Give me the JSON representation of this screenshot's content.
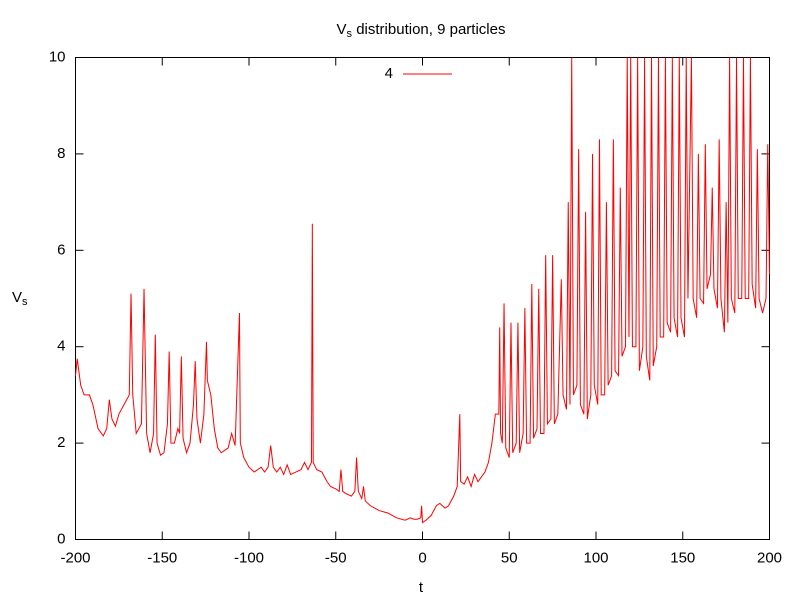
{
  "chart_data": {
    "type": "line",
    "title": {
      "symbol": "V",
      "subscript": "s",
      "text": " distribution, 9 particles"
    },
    "x_label": "t",
    "y_label": {
      "symbol": "V",
      "subscript": "s"
    },
    "xlim": [
      -200,
      200
    ],
    "xticks": [
      -200,
      -150,
      -100,
      -50,
      0,
      50,
      100,
      150,
      200
    ],
    "ylim": [
      0,
      10
    ],
    "yticks": [
      0,
      2,
      4,
      6,
      8,
      10
    ],
    "grid": false,
    "legend": "top-center",
    "x": [
      -200,
      -199,
      -197,
      -195,
      -192,
      -190,
      -187,
      -184,
      -182,
      -180.5,
      -179,
      -177,
      -175,
      -172,
      -169,
      -168,
      -167,
      -165,
      -162,
      -160.5,
      -159,
      -157,
      -155,
      -154,
      -153,
      -151,
      -149,
      -147,
      -146,
      -145,
      -143,
      -141,
      -140,
      -139,
      -138,
      -136,
      -134,
      -132,
      -131,
      -130,
      -128,
      -126,
      -124.5,
      -124,
      -122,
      -120,
      -118,
      -116,
      -114,
      -112,
      -110,
      -108,
      -105.5,
      -105,
      -103,
      -100,
      -97,
      -95,
      -93,
      -91,
      -89,
      -87.5,
      -86,
      -84,
      -82,
      -80,
      -78,
      -76,
      -73,
      -70,
      -68,
      -66,
      -64,
      -63.5,
      -63,
      -61,
      -58,
      -55,
      -53,
      -50,
      -48,
      -47,
      -46,
      -44,
      -41,
      -39,
      -38,
      -37,
      -35,
      -34,
      -33,
      -30,
      -25,
      -20,
      -15,
      -10,
      -7,
      -5,
      -3,
      -1,
      -0.5,
      0,
      2,
      5,
      8,
      10,
      13,
      15,
      18,
      20,
      21.5,
      22,
      24,
      26,
      28,
      30,
      32,
      34,
      36,
      38,
      40,
      42,
      44,
      44.5,
      45,
      46,
      47,
      48,
      50,
      51,
      52,
      54,
      55,
      56,
      58,
      59,
      60,
      62,
      63,
      64,
      66,
      67,
      68,
      70,
      71,
      72,
      74,
      75,
      76,
      78,
      80,
      81,
      83,
      84,
      85,
      86,
      87,
      89,
      90,
      91,
      93,
      94,
      95,
      97,
      98,
      99,
      101,
      102,
      103,
      105,
      106,
      107,
      109,
      110,
      111,
      113,
      114,
      115,
      117,
      118,
      119,
      120,
      121,
      123,
      124,
      125,
      127,
      128,
      129,
      131,
      132,
      133,
      135,
      136,
      137,
      139,
      140,
      141,
      143,
      144,
      145,
      147,
      148,
      149,
      151,
      152,
      153,
      155,
      156,
      158,
      159,
      160,
      162,
      163,
      164,
      166,
      167,
      168,
      170,
      171,
      172,
      174,
      175,
      176,
      177,
      178,
      180,
      181,
      182,
      184,
      185,
      186,
      188,
      189,
      190,
      192,
      193,
      194,
      196,
      198,
      199,
      200
    ],
    "series": [
      {
        "name": "4",
        "color": "#ff0000",
        "values": [
          3.4,
          3.75,
          3.2,
          3.0,
          3.0,
          2.8,
          2.3,
          2.15,
          2.3,
          2.9,
          2.5,
          2.35,
          2.6,
          2.8,
          3.0,
          5.1,
          3.0,
          2.2,
          2.4,
          5.2,
          2.2,
          1.8,
          2.2,
          4.25,
          2.0,
          1.75,
          1.8,
          2.4,
          3.9,
          2.0,
          2.0,
          2.3,
          2.2,
          3.8,
          2.1,
          1.8,
          2.0,
          2.8,
          3.7,
          2.5,
          2.0,
          2.6,
          4.1,
          3.3,
          3.0,
          2.3,
          1.9,
          1.8,
          1.85,
          1.9,
          2.2,
          1.95,
          4.7,
          2.0,
          1.7,
          1.5,
          1.4,
          1.45,
          1.5,
          1.4,
          1.5,
          1.95,
          1.5,
          1.4,
          1.5,
          1.35,
          1.55,
          1.35,
          1.4,
          1.45,
          1.6,
          1.45,
          1.6,
          6.55,
          1.6,
          1.45,
          1.4,
          1.2,
          1.1,
          1.05,
          1.0,
          1.45,
          1.0,
          0.95,
          0.9,
          1.0,
          1.7,
          1.0,
          0.85,
          1.1,
          0.8,
          0.7,
          0.6,
          0.55,
          0.45,
          0.4,
          0.45,
          0.42,
          0.42,
          0.45,
          0.7,
          0.35,
          0.4,
          0.5,
          0.7,
          0.75,
          0.65,
          0.7,
          0.9,
          1.1,
          2.6,
          1.2,
          1.15,
          1.3,
          1.1,
          1.35,
          1.2,
          1.3,
          1.4,
          1.6,
          2.0,
          2.6,
          2.6,
          4.4,
          2.2,
          2.0,
          4.9,
          1.9,
          1.7,
          4.5,
          1.8,
          2.0,
          4.5,
          1.8,
          2.2,
          4.8,
          2.0,
          2.0,
          5.3,
          2.1,
          2.3,
          5.2,
          2.2,
          2.2,
          5.9,
          2.4,
          2.5,
          5.9,
          2.4,
          2.6,
          5.4,
          3.0,
          2.7,
          7.0,
          2.8,
          10,
          3.0,
          3.2,
          8.1,
          2.8,
          2.6,
          6.8,
          2.5,
          3.0,
          8.0,
          3.2,
          2.8,
          8.3,
          3.0,
          3.0,
          7.0,
          3.2,
          3.4,
          8.3,
          3.5,
          3.4,
          7.3,
          3.8,
          4.0,
          10,
          4.2,
          10,
          4.0,
          4.0,
          10,
          3.5,
          4.0,
          10,
          3.8,
          3.3,
          10,
          3.6,
          4.0,
          10,
          4.2,
          4.2,
          10,
          4.5,
          4.3,
          10,
          4.6,
          4.2,
          10,
          4.6,
          4.2,
          10,
          5.0,
          10,
          5.0,
          4.6,
          8.0,
          5.0,
          4.9,
          8.2,
          5.2,
          5.5,
          7.3,
          5.2,
          4.8,
          8.3,
          5.0,
          4.3,
          7.0,
          4.5,
          10,
          5.0,
          4.7,
          10,
          5.0,
          5.0,
          10,
          5.0,
          5.0,
          10,
          5.3,
          4.8,
          8.1,
          5.0,
          4.7,
          5.0,
          8.2,
          5.5
        ]
      }
    ]
  }
}
